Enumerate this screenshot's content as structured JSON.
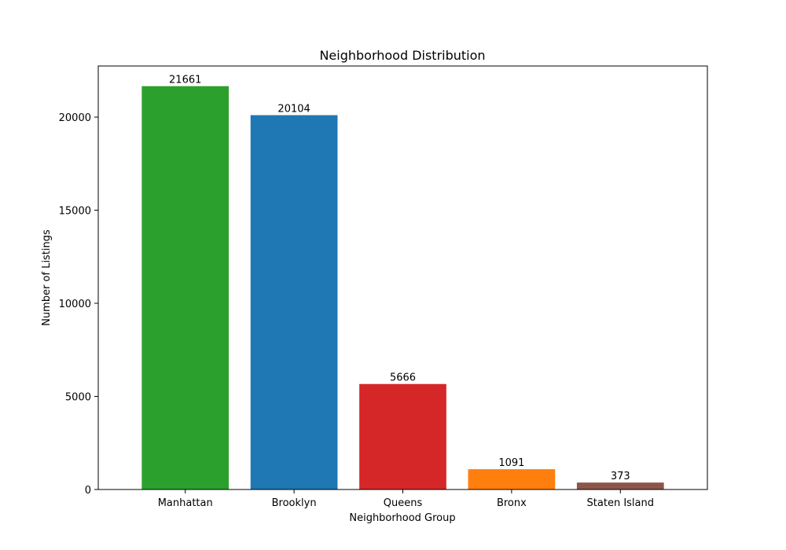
{
  "chart_data": {
    "type": "bar",
    "title": "Neighborhood Distribution",
    "xlabel": "Neighborhood Group",
    "ylabel": "Number of Listings",
    "categories": [
      "Manhattan",
      "Brooklyn",
      "Queens",
      "Bronx",
      "Staten Island"
    ],
    "values": [
      21661,
      20104,
      5666,
      1091,
      373
    ],
    "data_labels": [
      "21661",
      "20104",
      "5666",
      "1091",
      "373"
    ],
    "colors": [
      "#2ca02c",
      "#1f77b4",
      "#d62728",
      "#ff7f0e",
      "#8c564b"
    ],
    "ylim": [
      0,
      22744
    ],
    "yticks": [
      0,
      5000,
      10000,
      15000,
      20000
    ],
    "ytick_labels": [
      "0",
      "5000",
      "10000",
      "15000",
      "20000"
    ],
    "grid": false,
    "legend": false
  }
}
